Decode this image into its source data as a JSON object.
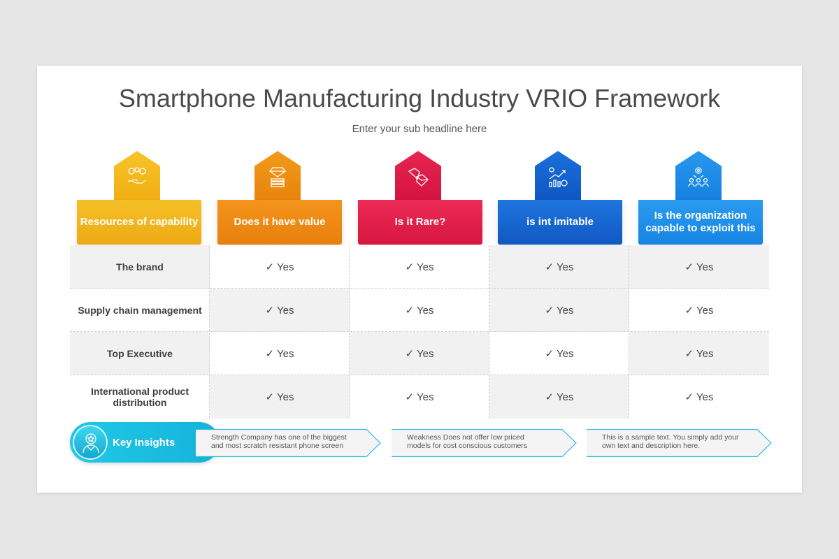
{
  "title": "Smartphone Manufacturing Industry VRIO Framework",
  "subtitle": "Enter your sub headline here",
  "columns": [
    {
      "label": "Resources of capability",
      "icon": "people-money-hand-icon",
      "color": "#f3b41b"
    },
    {
      "label": "Does it have value",
      "icon": "diamond-stack-icon",
      "color": "#ef8a10"
    },
    {
      "label": "Is it Rare?",
      "icon": "gems-icon",
      "color": "#e21d4c"
    },
    {
      "label": "is int imitable",
      "icon": "growth-chart-icon",
      "color": "#1565d0"
    },
    {
      "label": "Is the organization capable to exploit this",
      "icon": "team-gear-icon",
      "color": "#1e8fe9"
    }
  ],
  "rows": [
    {
      "label": "The brand",
      "values": [
        "✓ Yes",
        "✓ Yes",
        "✓ Yes",
        "✓ Yes"
      ]
    },
    {
      "label": "Supply chain management",
      "values": [
        "✓ Yes",
        "✓ Yes",
        "✓ Yes",
        "✓ Yes"
      ]
    },
    {
      "label": "Top Executive",
      "values": [
        "✓ Yes",
        "✓ Yes",
        "✓ Yes",
        "✓ Yes"
      ]
    },
    {
      "label": "International product distribution",
      "values": [
        "✓ Yes",
        "✓ Yes",
        "✓ Yes",
        "✓ Yes"
      ]
    }
  ],
  "insights": {
    "label": "Key Insights",
    "icon": "person-star-icon",
    "items": [
      "Strength Company has one of the biggest and most scratch resistant phone screen",
      "Weakness Does not offer low priced models for cost conscious customers",
      "This is a sample text. You simply add your own text and description here."
    ]
  }
}
